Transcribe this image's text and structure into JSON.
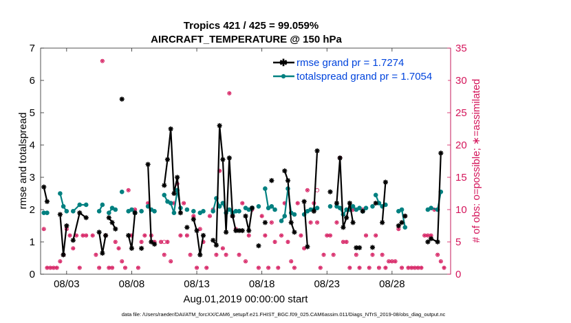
{
  "chart_data": {
    "type": "line",
    "title": "Tropics 421 / 425 = 99.059%",
    "subtitle": "AIRCRAFT_TEMPERATURE @ 150 hPa",
    "xlabel": "Aug.01,2019 00:00:00 start",
    "ylabel_left": "rmse and totalspread",
    "ylabel_right": "# of obs: o=possible; ∗=assimilated",
    "footer": "data file: /Users/raeder/DAI/ATM_forcXX/CAM6_setup/f.e21.FHIST_BGC.f09_025.CAM6assim.011/Diags_NTrS_2019-08/obs_diag_output.nc",
    "xlim": [
      1.0,
      32.5
    ],
    "ylim_left": [
      0,
      7
    ],
    "ylim_right": [
      0,
      35
    ],
    "x_ticks": [
      3,
      8,
      13,
      18,
      23,
      28
    ],
    "x_tick_labels": [
      "08/03",
      "08/08",
      "08/13",
      "08/18",
      "08/23",
      "08/28"
    ],
    "y_ticks_left": [
      "0",
      "1",
      "2",
      "3",
      "4",
      "5",
      "6",
      "7"
    ],
    "y_ticks_right": [
      "0",
      "5",
      "10",
      "15",
      "20",
      "25",
      "30",
      "35"
    ],
    "colors": {
      "rmse": "#000000",
      "spread": "#008080",
      "obs": "#d4145a",
      "legend_text": "#0044dd",
      "right_axis": "#d4145a"
    },
    "series": [
      {
        "name": "rmse grand pr = 1.7274",
        "color": "#000000",
        "points": [
          [
            1.25,
            2.7
          ],
          [
            1.5,
            2.25
          ],
          null,
          [
            2.5,
            1.85
          ],
          [
            2.75,
            0.6
          ],
          [
            3.0,
            1.5
          ],
          null,
          [
            3.5,
            1.05
          ],
          [
            4.0,
            1.9
          ],
          [
            4.5,
            1.75
          ],
          null,
          [
            5.5,
            1.3
          ],
          [
            5.75,
            0.65
          ],
          [
            6.0,
            1.2
          ],
          null,
          [
            6.25,
            1.75
          ],
          [
            6.5,
            1.6
          ],
          [
            6.75,
            1.4
          ],
          null,
          [
            7.25,
            5.42
          ],
          null,
          [
            7.75,
            1.2
          ],
          [
            8.0,
            0.8
          ],
          [
            8.25,
            1.9
          ],
          null,
          [
            8.75,
            0.8
          ],
          null,
          [
            9.25,
            3.4
          ],
          [
            9.5,
            1.0
          ],
          [
            9.75,
            0.93
          ],
          null,
          [
            10.5,
            2.75
          ],
          [
            10.75,
            3.55
          ],
          [
            11.0,
            4.5
          ],
          [
            11.25,
            2.5
          ],
          [
            11.5,
            3.0
          ],
          [
            11.75,
            1.9
          ],
          null,
          [
            12.25,
            1.45
          ],
          null,
          [
            12.75,
            1.7
          ],
          [
            13.0,
            1.35
          ],
          [
            13.25,
            0.6
          ],
          [
            13.5,
            1.2
          ],
          null,
          [
            14.25,
            1.05
          ],
          [
            14.5,
            0.9
          ],
          [
            14.75,
            4.6
          ],
          [
            15.0,
            3.55
          ],
          [
            15.25,
            1.3
          ],
          [
            15.5,
            3.6
          ],
          [
            15.75,
            1.8
          ],
          [
            16.0,
            1.35
          ],
          [
            16.25,
            1.35
          ],
          [
            16.5,
            1.35
          ],
          null,
          [
            16.75,
            1.8
          ],
          [
            17.0,
            1.35
          ],
          [
            17.25,
            2.05
          ],
          null,
          [
            17.75,
            0.88
          ],
          null,
          [
            18.25,
            1.6
          ],
          null,
          [
            18.75,
            2.9
          ],
          null,
          [
            19.75,
            3.2
          ],
          [
            20.0,
            2.9
          ],
          [
            20.25,
            1.6
          ],
          [
            20.5,
            1.3
          ],
          null,
          [
            21.25,
            2.25
          ],
          [
            21.5,
            0.85
          ],
          null,
          [
            22.0,
            1.95
          ],
          [
            22.25,
            3.82
          ],
          null,
          [
            23.25,
            2.55
          ],
          null,
          [
            23.75,
            2.2
          ],
          [
            24.0,
            3.6
          ],
          [
            24.25,
            1.45
          ],
          [
            24.5,
            1.75
          ],
          [
            24.75,
            2.2
          ],
          [
            25.0,
            1.6
          ],
          null,
          [
            25.25,
            0.82
          ],
          [
            25.5,
            0.82
          ],
          null,
          [
            25.75,
            1.95
          ],
          null,
          [
            26.5,
            0.83
          ],
          null,
          [
            26.75,
            2.2
          ],
          null,
          [
            27.25,
            1.6
          ],
          [
            27.5,
            2.85
          ],
          null,
          [
            28.5,
            1.5
          ],
          [
            28.75,
            1.6
          ],
          null,
          [
            29.0,
            1.8
          ],
          null,
          [
            30.75,
            1.0
          ],
          [
            31.0,
            1.1
          ],
          [
            31.5,
            1.0
          ],
          [
            31.75,
            3.75
          ]
        ]
      },
      {
        "name": "totalspread grand pr = 1.7054",
        "color": "#008080",
        "points": [
          [
            1.25,
            1.9
          ],
          [
            1.5,
            1.9
          ],
          null,
          [
            2.5,
            2.5
          ],
          [
            2.75,
            2.1
          ],
          [
            3.0,
            1.95
          ],
          null,
          [
            3.5,
            1.95
          ],
          [
            4.0,
            2.15
          ],
          [
            4.5,
            2.15
          ],
          null,
          [
            5.5,
            1.95
          ],
          [
            5.75,
            2.15
          ],
          null,
          [
            6.25,
            1.9
          ],
          [
            6.5,
            2.05
          ],
          [
            6.75,
            2.0
          ],
          null,
          [
            7.25,
            2.55
          ],
          null,
          [
            7.75,
            1.95
          ],
          [
            8.0,
            2.0
          ],
          [
            8.25,
            1.9
          ],
          null,
          [
            8.75,
            1.95
          ],
          null,
          [
            9.25,
            2.1
          ],
          [
            9.5,
            2.0
          ],
          null,
          [
            9.75,
            1.95
          ],
          null,
          [
            10.5,
            2.45
          ],
          [
            10.75,
            2.25
          ],
          [
            11.0,
            2.2
          ],
          [
            11.25,
            1.9
          ],
          [
            11.5,
            2.6
          ],
          [
            11.75,
            2.05
          ],
          null,
          [
            12.25,
            2.0
          ],
          null,
          [
            12.75,
            1.95
          ],
          null,
          [
            13.25,
            1.9
          ],
          [
            13.5,
            1.95
          ],
          null,
          [
            14.25,
            1.95
          ],
          [
            14.5,
            2.35
          ],
          [
            14.75,
            2.1
          ],
          [
            15.0,
            2.2
          ],
          [
            15.25,
            1.9
          ],
          [
            15.5,
            2.0
          ],
          [
            15.75,
            1.9
          ],
          [
            16.0,
            1.95
          ],
          [
            16.25,
            1.95
          ],
          null,
          [
            16.75,
            2.05
          ],
          [
            17.0,
            2.0
          ],
          [
            17.25,
            2.05
          ],
          null,
          [
            17.75,
            2.1
          ],
          null,
          [
            18.25,
            2.65
          ],
          [
            18.5,
            2.05
          ],
          null,
          [
            18.75,
            2.1
          ],
          [
            19.0,
            2.0
          ],
          null,
          [
            19.5,
            1.65
          ],
          [
            19.75,
            1.8
          ],
          [
            20.0,
            2.65
          ],
          [
            20.25,
            1.9
          ],
          null,
          [
            20.5,
            1.85
          ],
          null,
          [
            21.25,
            1.85
          ],
          [
            21.5,
            1.95
          ],
          [
            21.75,
            2.0
          ],
          [
            22.0,
            2.0
          ],
          [
            22.25,
            2.05
          ],
          null,
          [
            23.25,
            2.1
          ],
          null,
          [
            23.75,
            2.1
          ],
          [
            24.0,
            2.05
          ],
          [
            24.25,
            1.85
          ],
          [
            24.5,
            2.0
          ],
          [
            24.75,
            2.0
          ],
          [
            25.0,
            2.1
          ],
          [
            25.25,
            2.0
          ],
          [
            25.5,
            2.05
          ],
          null,
          [
            25.75,
            1.95
          ],
          [
            26.0,
            2.05
          ],
          null,
          [
            26.5,
            2.1
          ],
          null,
          [
            26.75,
            2.45
          ],
          [
            27.0,
            2.2
          ],
          [
            27.25,
            2.1
          ],
          null,
          [
            27.5,
            2.15
          ],
          null,
          [
            28.5,
            1.95
          ],
          [
            28.75,
            2.0
          ],
          [
            29.0,
            1.45
          ],
          null,
          [
            30.75,
            2.0
          ],
          [
            31.0,
            2.05
          ],
          [
            31.5,
            2.0
          ],
          [
            31.75,
            2.55
          ]
        ]
      }
    ],
    "obs": {
      "name": "# of obs",
      "possible": [
        [
          1.25,
          7
        ],
        [
          1.5,
          1
        ],
        [
          1.75,
          1
        ],
        [
          2.0,
          1
        ],
        [
          2.25,
          1
        ],
        [
          2.5,
          2
        ],
        [
          2.75,
          3
        ],
        [
          3.0,
          7
        ],
        [
          3.25,
          6
        ],
        [
          3.5,
          4
        ],
        [
          3.75,
          6
        ],
        [
          4.0,
          1
        ],
        [
          4.25,
          6
        ],
        [
          4.5,
          6
        ],
        [
          5.0,
          6
        ],
        [
          5.25,
          3
        ],
        [
          5.5,
          1
        ],
        [
          5.75,
          33
        ],
        [
          6.0,
          6
        ],
        [
          6.25,
          1
        ],
        [
          6.5,
          1
        ],
        [
          6.75,
          5
        ],
        [
          7.0,
          4
        ],
        [
          7.25,
          2
        ],
        [
          7.5,
          1
        ],
        [
          7.75,
          13
        ],
        [
          8.0,
          6
        ],
        [
          8.25,
          10
        ],
        [
          8.5,
          1
        ],
        [
          8.75,
          5
        ],
        [
          9.0,
          6
        ],
        [
          9.25,
          11
        ],
        [
          9.5,
          6
        ],
        [
          9.75,
          5
        ],
        [
          10.25,
          5
        ],
        [
          10.5,
          3
        ],
        [
          10.75,
          5
        ],
        [
          11.0,
          2
        ],
        [
          11.25,
          11
        ],
        [
          11.5,
          14
        ],
        [
          11.75,
          6
        ],
        [
          12.0,
          11
        ],
        [
          12.25,
          6
        ],
        [
          12.5,
          3
        ],
        [
          12.75,
          9
        ],
        [
          13.0,
          1
        ],
        [
          13.25,
          7
        ],
        [
          13.5,
          5
        ],
        [
          13.75,
          1
        ],
        [
          14.0,
          9
        ],
        [
          14.25,
          10
        ],
        [
          14.5,
          3
        ],
        [
          14.75,
          16
        ],
        [
          15.0,
          4
        ],
        [
          15.25,
          3
        ],
        [
          15.5,
          28
        ],
        [
          15.75,
          9
        ],
        [
          16.0,
          7
        ],
        [
          16.25,
          3
        ],
        [
          16.5,
          11
        ],
        [
          16.75,
          2
        ],
        [
          17.0,
          6
        ],
        [
          17.25,
          10
        ],
        [
          17.75,
          1
        ],
        [
          18.0,
          9
        ],
        [
          18.25,
          6
        ],
        [
          18.5,
          1
        ],
        [
          18.75,
          8
        ],
        [
          19.0,
          5
        ],
        [
          19.25,
          1
        ],
        [
          19.5,
          6
        ],
        [
          19.75,
          11
        ],
        [
          20.0,
          5
        ],
        [
          20.25,
          2
        ],
        [
          20.5,
          1
        ],
        [
          20.75,
          11
        ],
        [
          21.0,
          6
        ],
        [
          21.25,
          4
        ],
        [
          21.5,
          13
        ],
        [
          21.75,
          8
        ],
        [
          22.0,
          11
        ],
        [
          22.25,
          8
        ],
        [
          22.5,
          1
        ],
        [
          22.75,
          3
        ],
        [
          23.0,
          6
        ],
        [
          23.25,
          6
        ],
        [
          23.5,
          3
        ],
        [
          23.75,
          8
        ],
        [
          24.0,
          18
        ],
        [
          24.25,
          5
        ],
        [
          24.5,
          5
        ],
        [
          24.75,
          1
        ],
        [
          25.0,
          10
        ],
        [
          25.25,
          3
        ],
        [
          25.5,
          1
        ],
        [
          25.75,
          10
        ],
        [
          26.0,
          6
        ],
        [
          26.25,
          1
        ],
        [
          26.5,
          3
        ],
        [
          26.75,
          6
        ],
        [
          27.0,
          1
        ],
        [
          27.25,
          3
        ],
        [
          27.5,
          1
        ],
        [
          27.75,
          2
        ],
        [
          28.0,
          2
        ],
        [
          28.25,
          2
        ],
        [
          28.5,
          7
        ],
        [
          28.75,
          1
        ],
        [
          29.0,
          9
        ],
        [
          29.25,
          1
        ],
        [
          29.5,
          1
        ],
        [
          29.75,
          1
        ],
        [
          30.0,
          1
        ],
        [
          30.25,
          1
        ],
        [
          30.5,
          6
        ],
        [
          30.75,
          6
        ],
        [
          31.0,
          6
        ],
        [
          31.25,
          10
        ],
        [
          31.5,
          3
        ],
        [
          31.75,
          2
        ],
        [
          32.0,
          1
        ]
      ],
      "possible_only": [
        [
          10.5,
          5
        ],
        [
          22.25,
          13
        ]
      ]
    },
    "legend": [
      {
        "label": "rmse grand pr = 1.7274",
        "color": "#000000"
      },
      {
        "label": "totalspread grand pr = 1.7054",
        "color": "#008080"
      }
    ],
    "legend_position": "top-right"
  }
}
